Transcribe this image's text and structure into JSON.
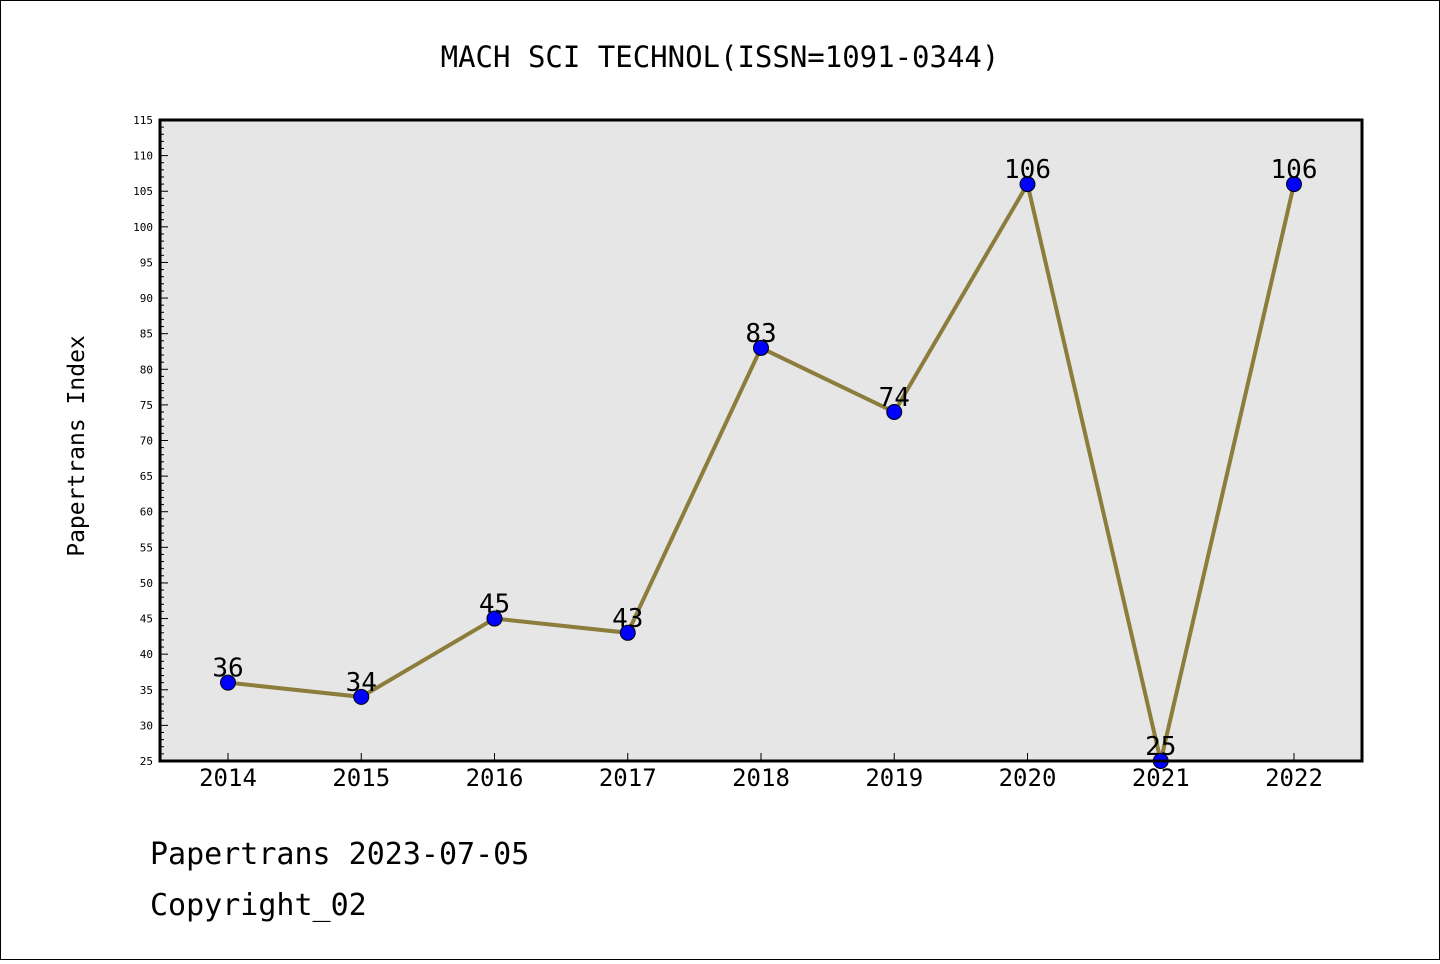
{
  "chart_data": {
    "type": "line",
    "title": "MACH SCI TECHNOL(ISSN=1091-0344)",
    "xlabel": "",
    "ylabel": "Papertrans Index",
    "categories": [
      "2014",
      "2015",
      "2016",
      "2017",
      "2018",
      "2019",
      "2020",
      "2021",
      "2022"
    ],
    "series": [
      {
        "values": [
          36,
          34,
          45,
          43,
          83,
          74,
          106,
          25,
          106
        ]
      }
    ],
    "ylim": [
      25,
      115
    ],
    "ytick_step": 5,
    "grid": false,
    "colors": {
      "line": "#8c7d3c",
      "marker": "#0000ff",
      "plot_background": "#e6e6e6"
    }
  },
  "footer": {
    "date_line": "Papertrans 2023-07-05",
    "copyright": "Copyright_02"
  }
}
